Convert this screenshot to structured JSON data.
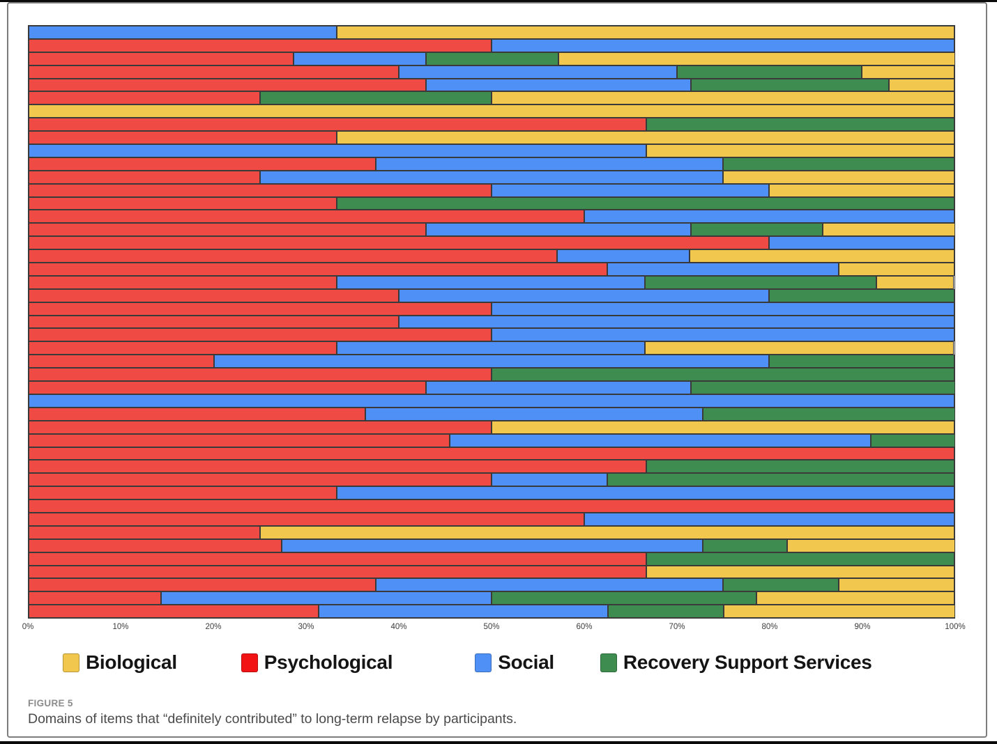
{
  "figure": {
    "label": "FIGURE 5",
    "caption": "Domains of items that “definitely contributed” to long-term relapse by participants."
  },
  "legend": {
    "position": "bottom",
    "items": [
      {
        "key": "biological",
        "label": "Biological",
        "color": "#F2C74D"
      },
      {
        "key": "psychological",
        "label": "Psychological",
        "color": "#F21414"
      },
      {
        "key": "social",
        "label": "Social",
        "color": "#4E90F5"
      },
      {
        "key": "recovery_support_services",
        "label": "Recovery Support Services",
        "color": "#3E8C4F"
      }
    ]
  },
  "chart_data": {
    "type": "bar",
    "subtype": "horizontal_stacked_100_percent",
    "title": "",
    "xlabel": "",
    "ylabel": "",
    "grid": false,
    "y_item_labels_shown": false,
    "x_axis": {
      "range": [
        0,
        100
      ],
      "ticks": [
        "0%",
        "10%",
        "20%",
        "30%",
        "40%",
        "50%",
        "60%",
        "70%",
        "80%",
        "90%",
        "100%"
      ]
    },
    "bar_outline_color": "#3A3A3A",
    "columns": [
      "psychological",
      "social",
      "recovery_support_services",
      "biological"
    ],
    "series_colors": {
      "psychological": "#F04A45",
      "social": "#4E90F5",
      "recovery_support_services": "#3E8C4F",
      "biological": "#F2C74D"
    },
    "values": [
      [
        0,
        33.3,
        0,
        66.7
      ],
      [
        50,
        50,
        0,
        0
      ],
      [
        28.6,
        14.3,
        14.3,
        42.9
      ],
      [
        40,
        30,
        20,
        10
      ],
      [
        42.9,
        28.6,
        21.4,
        7.1
      ],
      [
        25,
        0,
        25,
        50
      ],
      [
        0,
        0,
        0,
        100
      ],
      [
        66.7,
        0,
        33.3,
        0
      ],
      [
        33.3,
        0,
        0,
        66.7
      ],
      [
        0,
        66.7,
        0,
        33.3
      ],
      [
        37.5,
        37.5,
        25,
        0
      ],
      [
        25,
        50,
        0,
        25
      ],
      [
        50,
        30,
        0,
        20
      ],
      [
        33.3,
        0,
        66.7,
        0
      ],
      [
        60,
        40,
        0,
        0
      ],
      [
        42.9,
        28.6,
        14.3,
        14.3
      ],
      [
        80,
        20,
        0,
        0
      ],
      [
        57.1,
        14.3,
        0,
        28.6
      ],
      [
        62.5,
        25,
        0,
        12.5
      ],
      [
        33.3,
        33.3,
        25,
        8.3
      ],
      [
        40,
        40,
        20,
        0
      ],
      [
        50,
        50,
        0,
        0
      ],
      [
        40,
        60,
        0,
        0
      ],
      [
        50,
        50,
        0,
        0
      ],
      [
        33.3,
        33.3,
        0,
        33.3
      ],
      [
        20,
        60,
        20,
        0
      ],
      [
        50,
        0,
        50,
        0
      ],
      [
        42.9,
        28.6,
        28.6,
        0
      ],
      [
        0,
        100,
        0,
        0
      ],
      [
        36.4,
        36.4,
        27.3,
        0
      ],
      [
        50,
        0,
        0,
        50
      ],
      [
        45.5,
        45.5,
        9.1,
        0
      ],
      [
        100,
        0,
        0,
        0
      ],
      [
        66.7,
        0,
        33.3,
        0
      ],
      [
        50,
        12.5,
        37.5,
        0
      ],
      [
        33.3,
        66.7,
        0,
        0
      ],
      [
        100,
        0,
        0,
        0
      ],
      [
        60,
        40,
        0,
        0
      ],
      [
        25,
        0,
        0,
        75
      ],
      [
        27.3,
        45.5,
        9.1,
        18.2
      ],
      [
        66.7,
        0,
        33.3,
        0
      ],
      [
        66.7,
        0,
        0,
        33.3
      ],
      [
        37.5,
        37.5,
        12.5,
        12.5
      ],
      [
        14.3,
        35.7,
        28.6,
        21.4
      ],
      [
        31.3,
        31.3,
        12.5,
        25
      ]
    ]
  }
}
